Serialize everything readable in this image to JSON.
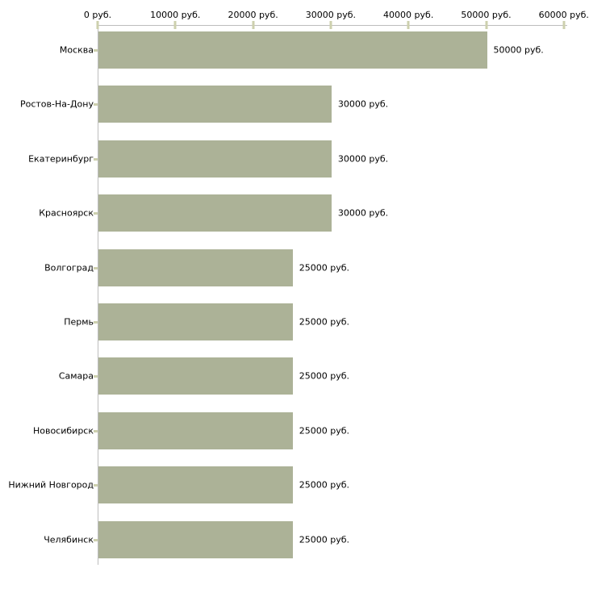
{
  "chart_data": {
    "type": "bar",
    "orientation": "horizontal",
    "categories": [
      "Москва",
      "Ростов-На-Дону",
      "Екатеринбург",
      "Красноярск",
      "Волгоград",
      "Пермь",
      "Самара",
      "Новосибирск",
      "Нижний Новгород",
      "Челябинск"
    ],
    "values": [
      50000,
      30000,
      30000,
      30000,
      25000,
      25000,
      25000,
      25000,
      25000,
      25000
    ],
    "bar_value_labels": [
      "50000 руб.",
      "30000 руб.",
      "30000 руб.",
      "30000 руб.",
      "25000 руб.",
      "25000 руб.",
      "25000 руб.",
      "25000 руб.",
      "25000 руб.",
      "25000 руб."
    ],
    "x_axis": {
      "position": "top",
      "range": [
        0,
        60000
      ],
      "ticks": [
        0,
        10000,
        20000,
        30000,
        40000,
        50000,
        60000
      ],
      "tick_labels": [
        "0 руб.",
        "10000 руб.",
        "20000 руб.",
        "30000 руб.",
        "40000 руб.",
        "50000 руб.",
        "60000 руб."
      ]
    },
    "grid": false,
    "legend": false,
    "colors": {
      "bar": "#acb297",
      "axis_line": "#bdbdbd",
      "tick_mark": "#cdd0ae",
      "text": "#000000",
      "background": "#ffffff"
    }
  }
}
